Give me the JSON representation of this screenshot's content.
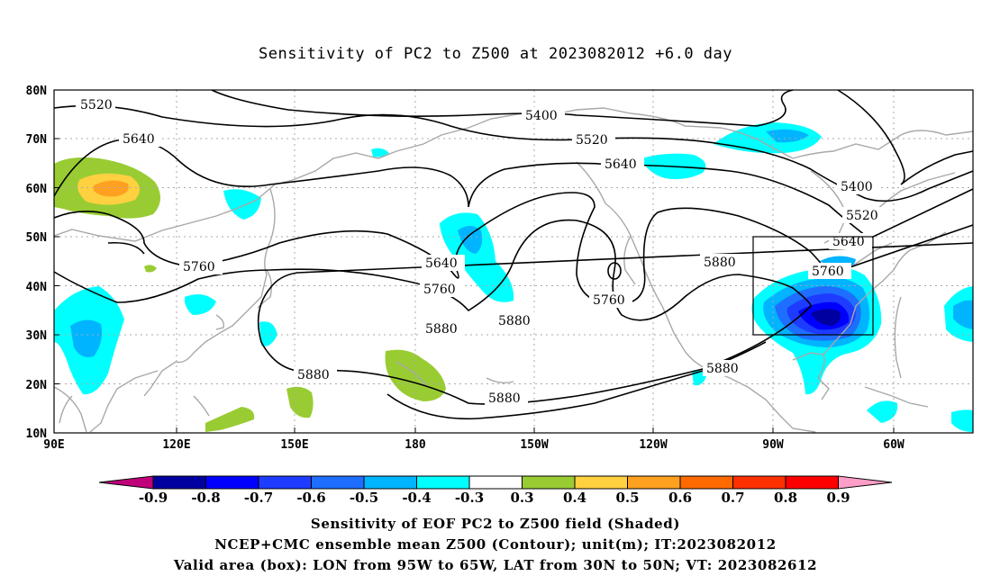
{
  "title": "Sensitivity of PC2 to Z500 at 2023082012 +6.0 day",
  "lat_labels": [
    "80N",
    "70N",
    "60N",
    "50N",
    "40N",
    "30N",
    "20N",
    "10N"
  ],
  "lon_labels": [
    "90E",
    "120E",
    "150E",
    "180",
    "150W",
    "120W",
    "90W",
    "60W"
  ],
  "contour_labels": [
    "5520",
    "5400",
    "5640",
    "5520",
    "5640",
    "5400",
    "5520",
    "5640",
    "5760",
    "5640",
    "5760",
    "5760",
    "5880",
    "5760",
    "5880",
    "5880",
    "5880",
    "5880",
    "5880"
  ],
  "colorbar": {
    "labels": [
      "-0.9",
      "-0.8",
      "-0.7",
      "-0.6",
      "-0.5",
      "-0.4",
      "-0.3",
      "0.3",
      "0.4",
      "0.5",
      "0.6",
      "0.7",
      "0.8",
      "0.9"
    ],
    "colors": [
      "#0000a0",
      "#0000ff",
      "#1e3cff",
      "#1e6eff",
      "#00b4ff",
      "#00ffff",
      "#ffffff",
      "#99cc33",
      "#ffd040",
      "#ffa020",
      "#ff6a00",
      "#ff3000",
      "#ff0000"
    ],
    "low_arrow_color": "#c0007a",
    "high_arrow_color": "#ff9ec8"
  },
  "box": {
    "lon_from": "95W",
    "lon_to": "65W",
    "lat_from": "30N",
    "lat_to": "50N"
  },
  "captions": {
    "line1": "Sensitivity of EOF PC2 to Z500 field (Shaded)",
    "line2": "NCEP+CMC ensemble mean Z500 (Contour); unit(m); IT:2023082012",
    "line3": "Valid area (box): LON from 95W to 65W, LAT from 30N to 50N; VT: 2023082612"
  }
}
